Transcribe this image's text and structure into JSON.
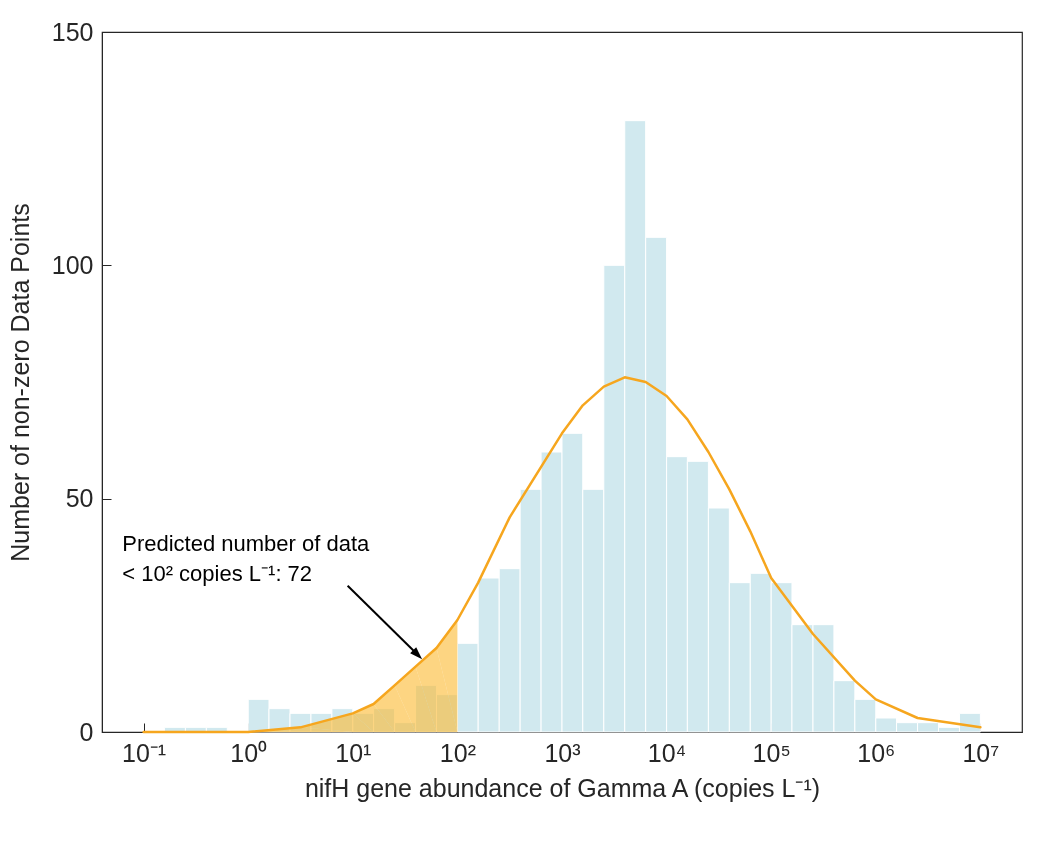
{
  "chart_data": {
    "type": "histogram",
    "xlabel": "nifH gene abundance of Gamma A (copies L⁻¹)",
    "ylabel": "Number of non-zero Data Points",
    "color": "#d1e9ef",
    "log": "x",
    "bins": [
      0.1,
      0.158,
      0.251,
      0.398,
      0.631,
      1,
      1.58,
      2.51,
      3.98,
      6.31,
      10,
      15.8,
      25.1,
      39.8,
      63.1,
      100,
      158,
      251,
      398,
      631,
      1000,
      1580,
      2510,
      3980,
      6310,
      10000,
      15800,
      25100,
      39800,
      63100,
      100000,
      158000,
      251000,
      398000,
      631000,
      1000000,
      1580000,
      2510000,
      3980000,
      6310000,
      10000000
    ],
    "values": [
      0,
      1,
      1,
      1,
      0,
      7,
      5,
      4,
      4,
      5,
      4,
      5,
      2,
      10,
      8,
      19,
      33,
      35,
      52,
      60,
      64,
      52,
      100,
      131,
      106,
      59,
      58,
      48,
      32,
      34,
      32,
      23,
      23,
      11,
      7,
      3,
      2,
      2,
      1,
      4
    ],
    "series": [
      {
        "type": "area",
        "color": "#fcb92e",
        "x": [
          0.1,
          0.316,
          1,
          3.16,
          10,
          15.8,
          25.1,
          39.8,
          63.1,
          100
        ],
        "values": [
          0,
          0,
          0,
          1,
          4,
          6,
          10,
          14,
          18,
          24
        ]
      },
      {
        "type": "line",
        "color": "#f6a61e",
        "x": [
          0.1,
          0.316,
          1,
          3.16,
          10,
          15.8,
          25.1,
          39.8,
          63.1,
          100,
          158,
          316,
          1000,
          1580,
          2510,
          3980,
          6310,
          10000,
          15800,
          25100,
          39800,
          63100,
          100000,
          251000,
          631000,
          1000000,
          2510000,
          10000000
        ],
        "values": [
          0,
          0,
          0,
          1,
          4,
          6,
          10,
          14,
          18,
          24,
          32,
          46,
          64,
          70,
          74,
          76,
          75,
          72,
          67,
          60,
          52,
          43,
          33,
          21,
          11,
          7,
          3,
          1
        ]
      }
    ],
    "xlim": [
      0.04,
      25000000
    ],
    "xticks": [
      {
        "value": 0.1,
        "label": "10⁻¹"
      },
      {
        "value": 1,
        "label": "10⁰"
      },
      {
        "value": 10,
        "label": "10¹"
      },
      {
        "value": 100,
        "label": "10²"
      },
      {
        "value": 1000,
        "label": "10³"
      },
      {
        "value": 10000,
        "label": "10⁴"
      },
      {
        "value": 100000,
        "label": "10⁵"
      },
      {
        "value": 1000000,
        "label": "10⁶"
      },
      {
        "value": 10000000,
        "label": "10⁷"
      }
    ],
    "ylim": [
      0,
      150
    ],
    "yticks": [
      0,
      50,
      100,
      150
    ],
    "annotations": [
      "Predicted number of data\n< 10² copies L⁻¹: 72"
    ]
  }
}
